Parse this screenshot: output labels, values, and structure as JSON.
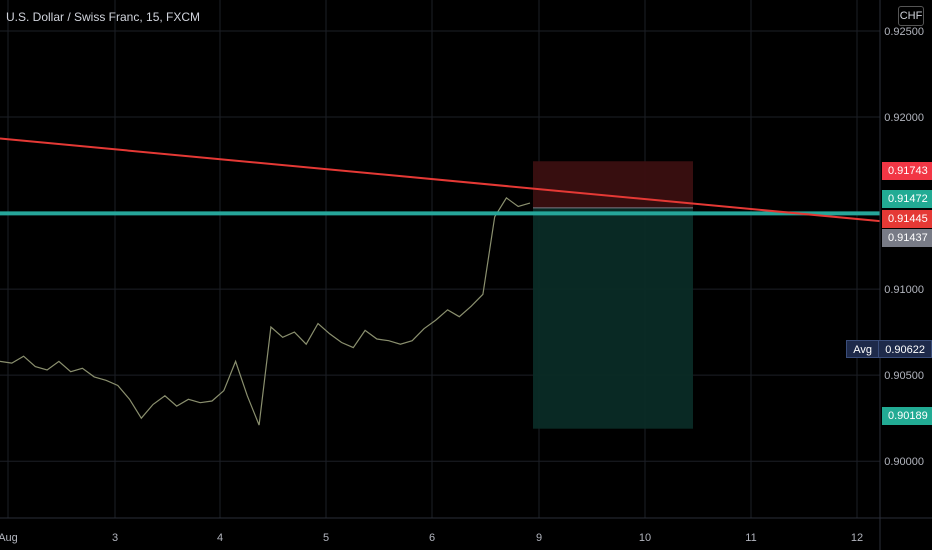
{
  "header": {
    "title": "U.S. Dollar / Swiss Franc, 15, FXCM",
    "currency": "CHF"
  },
  "price_labels": {
    "stop": "0.91743",
    "entry": "0.91472",
    "trendline": "0.91445",
    "current": "0.91437",
    "target": "0.90189",
    "avg_key": "Avg",
    "avg_value": "0.90622"
  },
  "colors": {
    "background": "#000000",
    "candle": "#8a8f6e",
    "trendline": "#e53935",
    "horizontal": "#26a69a",
    "stop_zone": "#3a0f10",
    "target_zone": "#0a2b26",
    "stop_label": "#f23645",
    "entry_label": "#22ab94",
    "trend_label": "#e53935",
    "current_label": "#787b86",
    "target_label": "#22ab94"
  },
  "chart_data": {
    "type": "line",
    "title": "U.S. Dollar / Swiss Franc, 15, FXCM",
    "x_ticks": [
      "Aug",
      "3",
      "4",
      "5",
      "6",
      "9",
      "10",
      "11",
      "12"
    ],
    "y_ticks": [
      "0.92500",
      "0.92000",
      "0.91000",
      "0.90500",
      "0.90000"
    ],
    "ylim": [
      0.8967,
      0.9268
    ],
    "series": [
      {
        "values": [
          0.9058,
          0.9057,
          0.9061,
          0.9055,
          0.9053,
          0.9058,
          0.9052,
          0.9054,
          0.9049,
          0.9047,
          0.9044,
          0.9036,
          0.9025,
          0.9033,
          0.9038,
          0.9032,
          0.9036,
          0.9034,
          0.9035,
          0.9041,
          0.9058,
          0.9038,
          0.9021,
          0.9078,
          0.9072,
          0.9075,
          0.9068,
          0.908,
          0.9074,
          0.9069,
          0.9066,
          0.9076,
          0.9071,
          0.907,
          0.9068,
          0.907,
          0.9077,
          0.9082,
          0.9088,
          0.9084,
          0.909,
          0.9097,
          0.9142,
          0.9153,
          0.9148,
          0.915
        ]
      }
    ],
    "trendline": [
      {
        "x": 0,
        "y": 0.91875
      },
      {
        "x": 1,
        "y": 0.91395
      }
    ],
    "horizontal_line": 0.9144,
    "position": {
      "entry": 0.91472,
      "stop": 0.91743,
      "target": 0.90189
    },
    "avg": 0.90622
  }
}
